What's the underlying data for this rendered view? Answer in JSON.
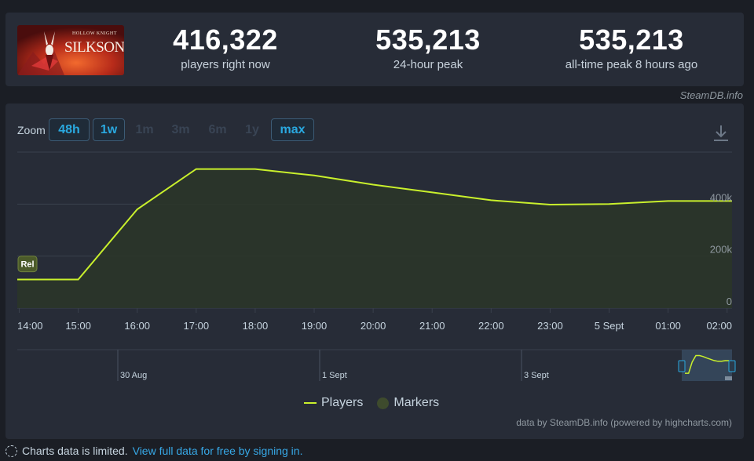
{
  "stats": {
    "game_name": "Hollow Knight Silksong",
    "logo_text": "SILKSONG",
    "logo_subtitle": "HOLLOW KNIGHT",
    "now_value": "416,322",
    "now_label": "players right now",
    "peak24_value": "535,213",
    "peak24_label": "24-hour peak",
    "alltime_value": "535,213",
    "alltime_label": "all-time peak 8 hours ago"
  },
  "attribution": "SteamDB.info",
  "zoom": {
    "label": "Zoom",
    "buttons": [
      {
        "label": "48h",
        "active": true
      },
      {
        "label": "1w",
        "active": true
      },
      {
        "label": "1m",
        "active": false
      },
      {
        "label": "3m",
        "active": false
      },
      {
        "label": "6m",
        "active": false
      },
      {
        "label": "1y",
        "active": false
      },
      {
        "label": "max",
        "active": true
      }
    ]
  },
  "chart_data": {
    "type": "area",
    "series": [
      {
        "name": "Players",
        "color": "#c9f02c",
        "x": [
          "14:00",
          "15:00",
          "16:00",
          "17:00",
          "18:00",
          "19:00",
          "20:00",
          "21:00",
          "22:00",
          "23:00",
          "5 Sept",
          "01:00",
          "02:00"
        ],
        "values": [
          110000,
          110000,
          380000,
          535000,
          535000,
          510000,
          475000,
          445000,
          415000,
          398000,
          400000,
          412000,
          412000
        ]
      }
    ],
    "x_start": "13:58",
    "x_end": "02:05",
    "x_labels": [
      "14:00",
      "15:00",
      "16:00",
      "17:00",
      "18:00",
      "19:00",
      "20:00",
      "21:00",
      "22:00",
      "23:00",
      "5 Sept",
      "01:00",
      "02:00"
    ],
    "y_tick_labels": [
      {
        "value": 0,
        "label": "0"
      },
      {
        "value": 200000,
        "label": "200k"
      },
      {
        "value": 400000,
        "label": "400k"
      }
    ],
    "ylim": [
      0,
      600000
    ],
    "grid": true,
    "marker": {
      "label": "Rel",
      "value": 170000
    },
    "navigator_labels": [
      "30 Aug",
      "1 Sept",
      "3 Sept"
    ],
    "legend": [
      "Players",
      "Markers"
    ],
    "legend_position": "bottom-center"
  },
  "legend": {
    "players": "Players",
    "markers": "Markers"
  },
  "credits": "data by SteamDB.info (powered by highcharts.com)",
  "footer": {
    "limited_text": "Charts data is limited.",
    "link_text": "View full data for free by signing in."
  }
}
